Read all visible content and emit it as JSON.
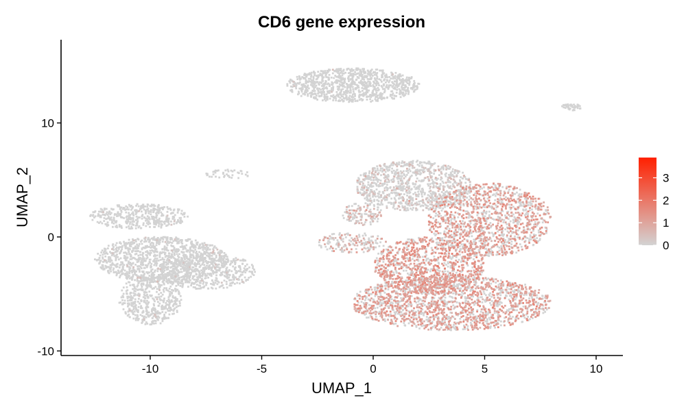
{
  "chart_data": {
    "type": "scatter",
    "title": "CD6 gene expression",
    "xlabel": "UMAP_1",
    "ylabel": "UMAP_2",
    "xlim": [
      -14,
      11.2
    ],
    "ylim": [
      -10.4,
      17.3
    ],
    "x_ticks": [
      -10,
      -5,
      0,
      5,
      10
    ],
    "y_ticks": [
      -10,
      0,
      10
    ],
    "grid": false,
    "color_scale": {
      "low_color": "#d3d3d3",
      "high_color": "#ff2000",
      "min": 0,
      "max": 3.9,
      "ticks": [
        0,
        1,
        2,
        3
      ],
      "legend_position": "right"
    },
    "clusters": [
      {
        "cx": -10.5,
        "cy": 1.8,
        "rx": 2.2,
        "ry": 1.1,
        "weight": 0.5,
        "expr": 0.02
      },
      {
        "cx": -9.5,
        "cy": -2.0,
        "rx": 3.0,
        "ry": 2.0,
        "weight": 1.4,
        "expr": 0.02
      },
      {
        "cx": -10.0,
        "cy": -5.5,
        "rx": 1.4,
        "ry": 2.2,
        "weight": 0.6,
        "expr": 0.02
      },
      {
        "cx": -7.5,
        "cy": -3.0,
        "rx": 2.2,
        "ry": 1.6,
        "weight": 0.6,
        "expr": 0.02
      },
      {
        "cx": -0.9,
        "cy": 13.3,
        "rx": 3.0,
        "ry": 1.5,
        "weight": 1.2,
        "expr": 0.01
      },
      {
        "cx": 8.9,
        "cy": 11.4,
        "rx": 0.45,
        "ry": 0.3,
        "weight": 0.05,
        "expr": 0.0
      },
      {
        "cx": -6.5,
        "cy": 5.5,
        "rx": 1.0,
        "ry": 0.4,
        "weight": 0.05,
        "expr": 0.0
      },
      {
        "cx": 1.8,
        "cy": 4.5,
        "rx": 2.6,
        "ry": 2.2,
        "weight": 1.2,
        "expr": 0.3
      },
      {
        "cx": 5.2,
        "cy": 1.5,
        "rx": 2.8,
        "ry": 3.2,
        "weight": 1.6,
        "expr": 0.9
      },
      {
        "cx": 2.5,
        "cy": -2.5,
        "rx": 2.5,
        "ry": 2.5,
        "weight": 1.2,
        "expr": 1.0
      },
      {
        "cx": 3.5,
        "cy": -5.8,
        "rx": 4.5,
        "ry": 2.4,
        "weight": 2.2,
        "expr": 0.9
      },
      {
        "cx": -1.0,
        "cy": -0.5,
        "rx": 1.6,
        "ry": 0.9,
        "weight": 0.2,
        "expr": 0.6
      },
      {
        "cx": -0.5,
        "cy": 2.0,
        "rx": 0.9,
        "ry": 1.0,
        "weight": 0.15,
        "expr": 0.5
      }
    ]
  }
}
